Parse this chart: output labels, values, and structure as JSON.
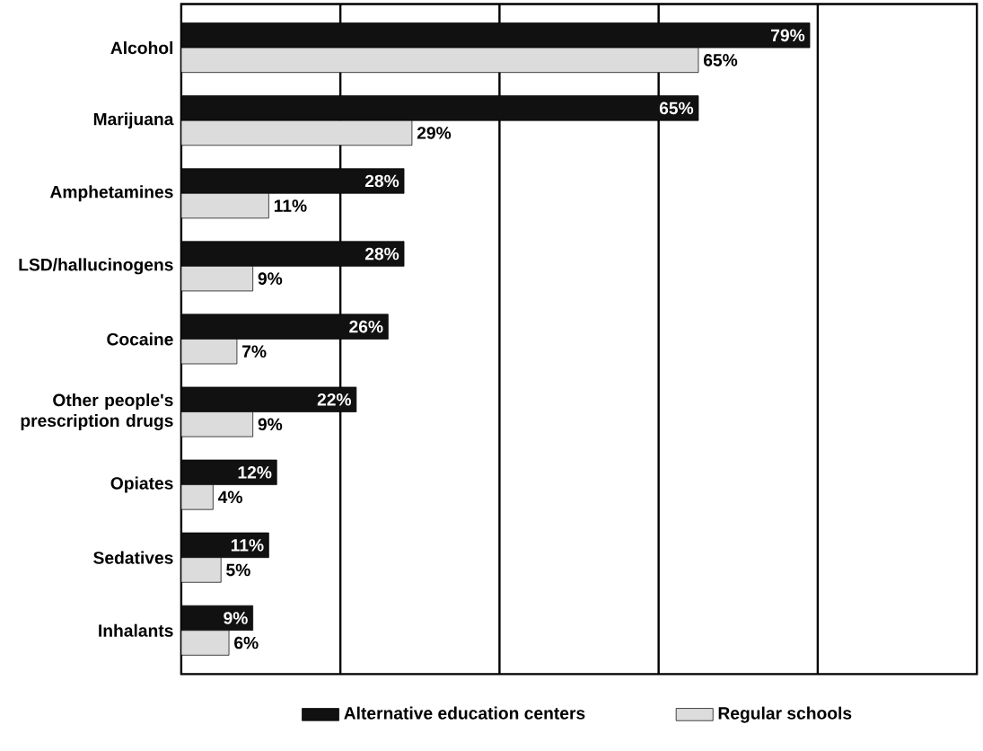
{
  "chart_data": {
    "type": "bar",
    "orientation": "horizontal",
    "categories": [
      "Alcohol",
      "Marijuana",
      "Amphetamines",
      "LSD/hallucinogens",
      "Cocaine",
      "Other people's prescription drugs",
      "Opiates",
      "Sedatives",
      "Inhalants"
    ],
    "series": [
      {
        "name": "Alternative education centers",
        "color": "#111111",
        "values": [
          79,
          65,
          28,
          28,
          26,
          22,
          12,
          11,
          9
        ],
        "value_labels": [
          "79%",
          "65%",
          "28%",
          "28%",
          "26%",
          "22%",
          "12%",
          "11%",
          "9%"
        ]
      },
      {
        "name": "Regular schools",
        "color": "#dcdcdc",
        "values": [
          65,
          29,
          11,
          9,
          7,
          9,
          4,
          5,
          6
        ],
        "value_labels": [
          "65%",
          "29%",
          "11%",
          "9%",
          "7%",
          "9%",
          "4%",
          "5%",
          "6%"
        ]
      }
    ],
    "xlim": [
      0,
      100
    ],
    "xticks": [
      {
        "value": 20,
        "label": null
      },
      {
        "value": 40,
        "label": null
      },
      {
        "value": 60,
        "label": null
      },
      {
        "value": 80,
        "label": null
      }
    ],
    "grid": "x",
    "tick_labels": "y",
    "legend": "bottom"
  }
}
